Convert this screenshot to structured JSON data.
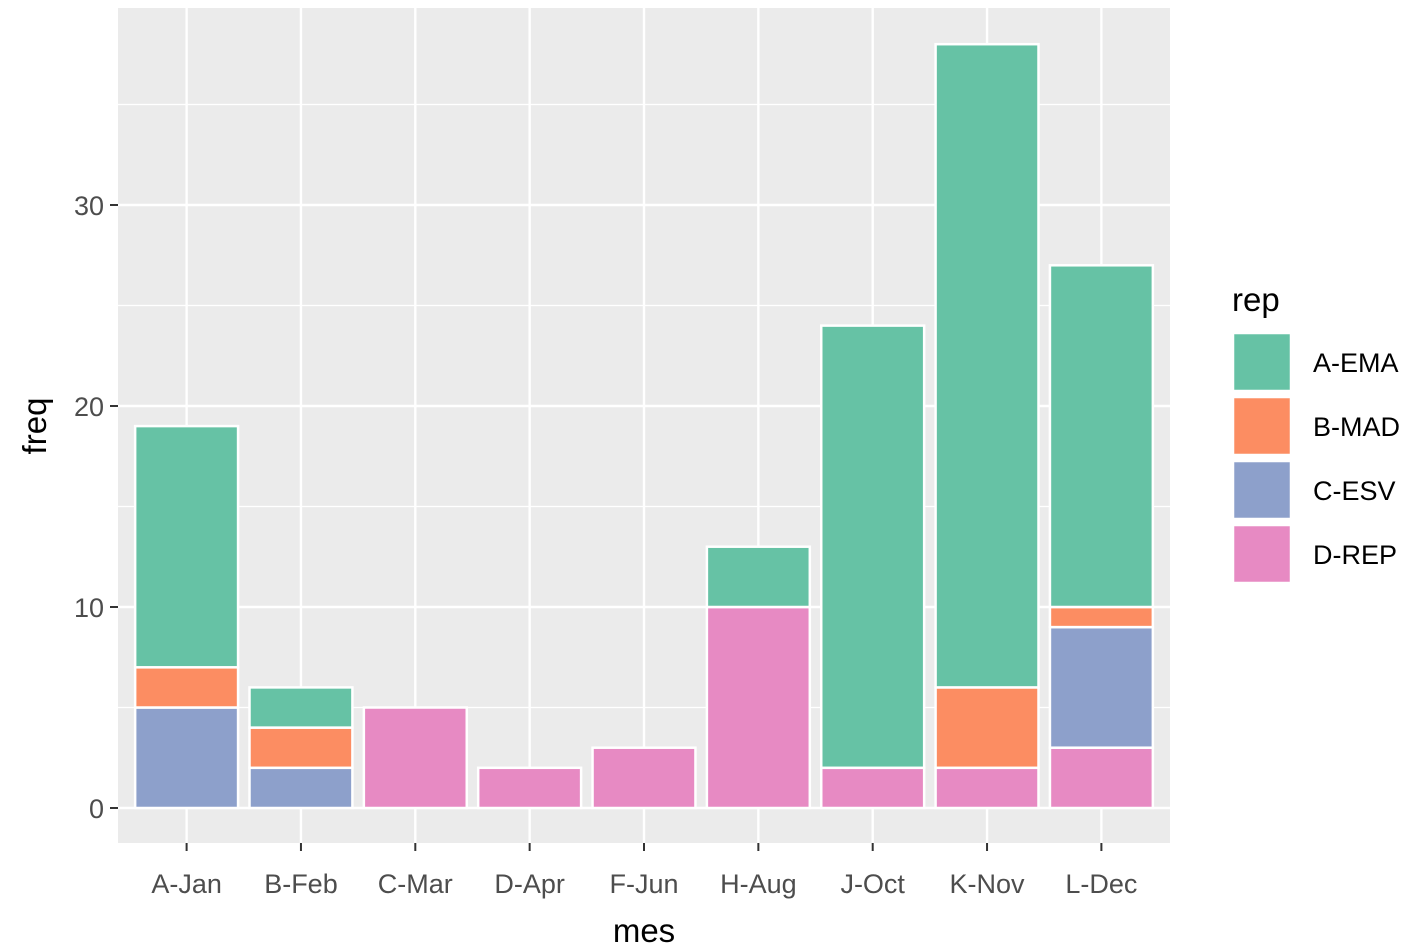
{
  "chart_data": {
    "type": "bar",
    "stacked": true,
    "title": "",
    "xlabel": "mes",
    "ylabel": "freq",
    "ylim": [
      -1.8,
      40
    ],
    "y_ticks": [
      0,
      10,
      20,
      30
    ],
    "grid": true,
    "legend_position": "right",
    "legend_title": "rep",
    "categories": [
      "A-Jan",
      "B-Feb",
      "C-Mar",
      "D-Apr",
      "F-Jun",
      "H-Aug",
      "J-Oct",
      "K-Nov",
      "L-Dec"
    ],
    "series": [
      {
        "name": "A-EMA",
        "color": "#66c2a5",
        "values": [
          12,
          2,
          0,
          0,
          0,
          3,
          22,
          32,
          17
        ]
      },
      {
        "name": "B-MAD",
        "color": "#fc8d62",
        "values": [
          2,
          2,
          0,
          0,
          0,
          0,
          0,
          4,
          1
        ]
      },
      {
        "name": "C-ESV",
        "color": "#8da0cb",
        "values": [
          5,
          2,
          0,
          0,
          0,
          0,
          0,
          0,
          6
        ]
      },
      {
        "name": "D-REP",
        "color": "#e78ac3",
        "values": [
          0,
          0,
          5,
          2,
          3,
          10,
          2,
          2,
          3
        ]
      }
    ],
    "panel_background": "#ebebeb",
    "grid_color": "#ffffff"
  }
}
